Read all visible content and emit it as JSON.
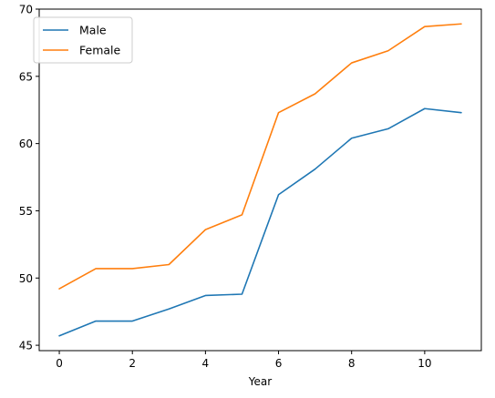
{
  "chart_data": {
    "type": "line",
    "title": "",
    "xlabel": "Year",
    "ylabel": "",
    "x": [
      0,
      1,
      2,
      3,
      4,
      5,
      6,
      7,
      8,
      9,
      10,
      11
    ],
    "xlim": [
      -0.55,
      11.55
    ],
    "ylim": [
      44.6,
      70.0
    ],
    "xticks": [
      0,
      2,
      4,
      6,
      8,
      10
    ],
    "yticks": [
      45,
      50,
      55,
      60,
      65,
      70
    ],
    "grid": false,
    "legend_position": "upper-left",
    "series": [
      {
        "name": "Male",
        "color": "#1f77b4",
        "values": [
          45.7,
          46.8,
          46.8,
          47.7,
          48.7,
          48.8,
          56.2,
          58.1,
          60.4,
          61.1,
          62.6,
          62.3
        ]
      },
      {
        "name": "Female",
        "color": "#ff7f0e",
        "values": [
          49.2,
          50.7,
          50.7,
          51.0,
          53.6,
          54.7,
          62.3,
          63.7,
          66.0,
          66.9,
          68.7,
          68.9
        ]
      }
    ]
  }
}
